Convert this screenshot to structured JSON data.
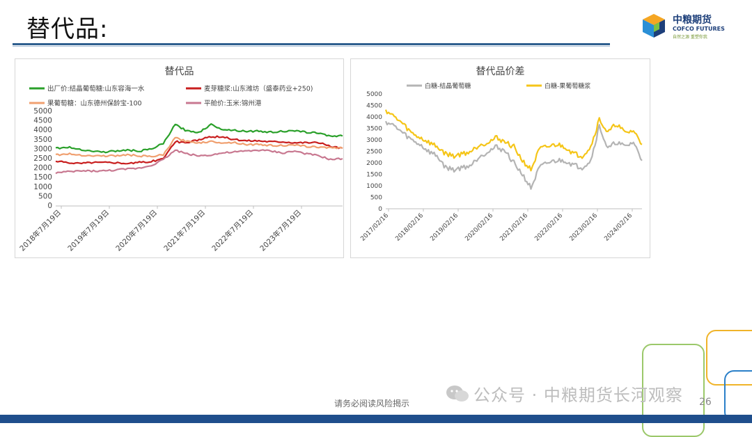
{
  "slide": {
    "title": "替代品:",
    "footer_note": "请务必阅读风险揭示",
    "watermark": "公众号 · 中粮期货长河观察",
    "page_number": "26"
  },
  "logo": {
    "cn": "中粮期货",
    "en": "COFCO FUTURES",
    "slogan": "自然之源 重塑你我"
  },
  "colors": {
    "green": "#2aa02a",
    "red": "#c81e1e",
    "salmon": "#f0a070",
    "pink": "#c87890",
    "gray": "#b4b4b4",
    "yellow": "#f5c518",
    "title_rule": "#2f5f8f",
    "bottom_bar": "#1f4e8c"
  },
  "chart_data": [
    {
      "type": "line",
      "title": "替代品",
      "legend_position": "top",
      "ylim": [
        0,
        5000
      ],
      "yticks": [
        "5000",
        "4500",
        "4000",
        "3500",
        "3000",
        "2500",
        "2000",
        "1500",
        "1000",
        "500",
        "0"
      ],
      "xticks": [
        "2018年7月19日",
        "2019年7月19日",
        "2020年7月19日",
        "2021年7月19日",
        "2022年7月19日",
        "2023年7月19日"
      ],
      "x": [
        "2018-07",
        "2018-10",
        "2019-01",
        "2019-04",
        "2019-07",
        "2019-10",
        "2020-01",
        "2020-04",
        "2020-07",
        "2020-10",
        "2021-01",
        "2021-04",
        "2021-07",
        "2021-10",
        "2022-01",
        "2022-04",
        "2022-07",
        "2022-10",
        "2023-01",
        "2023-04",
        "2023-07",
        "2023-10",
        "2024-01",
        "2024-04",
        "2024-07"
      ],
      "series": [
        {
          "name": "出厂价:结晶葡萄糖:山东容海一水",
          "color": "#2aa02a",
          "values": [
            3050,
            3100,
            3000,
            2900,
            2850,
            2900,
            2950,
            2900,
            3000,
            3300,
            4300,
            3950,
            3900,
            4300,
            4050,
            4000,
            3950,
            3950,
            3900,
            3950,
            3950,
            3900,
            3850,
            3700,
            3700
          ]
        },
        {
          "name": "麦芽糖浆:山东潍坊（盛泰药业+250)",
          "color": "#c81e1e",
          "values": [
            2350,
            2300,
            2250,
            2300,
            2300,
            2300,
            2250,
            2300,
            2350,
            2500,
            3400,
            3350,
            3500,
            3650,
            3650,
            3500,
            3450,
            3450,
            3400,
            3400,
            3350,
            3350,
            3350,
            3150,
            3050
          ]
        },
        {
          "name": "果葡萄糖：山东德州保龄宝-100",
          "color": "#f0a070",
          "values": [
            2700,
            2750,
            2700,
            2650,
            2650,
            2650,
            2700,
            2650,
            2600,
            2700,
            3600,
            3400,
            3350,
            3400,
            3350,
            3350,
            3250,
            3250,
            3200,
            3200,
            3200,
            3150,
            3100,
            3100,
            3050
          ]
        },
        {
          "name": "平舱价:玉米:锦州港",
          "color": "#c87890",
          "values": [
            1750,
            1800,
            1850,
            1850,
            1850,
            1900,
            1950,
            2000,
            2150,
            2450,
            2950,
            2750,
            2650,
            2700,
            2800,
            2850,
            2900,
            2950,
            2900,
            2800,
            2900,
            2750,
            2650,
            2450,
            2500
          ]
        }
      ]
    },
    {
      "type": "line",
      "title": "替代品价差",
      "legend_position": "top",
      "ylim": [
        0,
        5000
      ],
      "yticks": [
        "5000",
        "4500",
        "4000",
        "3500",
        "3000",
        "2500",
        "2000",
        "1500",
        "1000",
        "500",
        "0"
      ],
      "xticks": [
        "2017/02/16",
        "2018/02/16",
        "2019/02/16",
        "2020/02/16",
        "2021/02/16",
        "2022/02/16",
        "2023/02/16",
        "2024/02/16"
      ],
      "x": [
        "2017-02",
        "2017-05",
        "2017-08",
        "2017-11",
        "2018-02",
        "2018-05",
        "2018-08",
        "2018-11",
        "2019-02",
        "2019-05",
        "2019-08",
        "2019-11",
        "2020-02",
        "2020-05",
        "2020-08",
        "2020-11",
        "2021-02",
        "2021-05",
        "2021-08",
        "2021-11",
        "2022-02",
        "2022-05",
        "2022-08",
        "2022-11",
        "2023-02",
        "2023-05",
        "2023-08",
        "2023-11",
        "2024-02",
        "2024-05",
        "2024-07"
      ],
      "series": [
        {
          "name": "白糖-结晶葡萄糖",
          "color": "#b4b4b4",
          "values": [
            3800,
            3600,
            3300,
            3000,
            2800,
            2500,
            2300,
            1800,
            1700,
            1800,
            1900,
            2300,
            2500,
            2700,
            2500,
            2000,
            1500,
            900,
            1800,
            2000,
            2100,
            2100,
            1900,
            1800,
            2100,
            3600,
            2600,
            2900,
            2700,
            2900,
            2100
          ]
        },
        {
          "name": "白糖-果葡萄糖浆",
          "color": "#f5c518",
          "values": [
            4300,
            4000,
            3700,
            3300,
            3100,
            2900,
            2700,
            2400,
            2300,
            2400,
            2500,
            2800,
            2900,
            3100,
            2900,
            2700,
            2100,
            1700,
            2600,
            2700,
            2800,
            2700,
            2400,
            2300,
            2700,
            3900,
            3300,
            3700,
            3300,
            3400,
            2800
          ]
        }
      ]
    }
  ]
}
